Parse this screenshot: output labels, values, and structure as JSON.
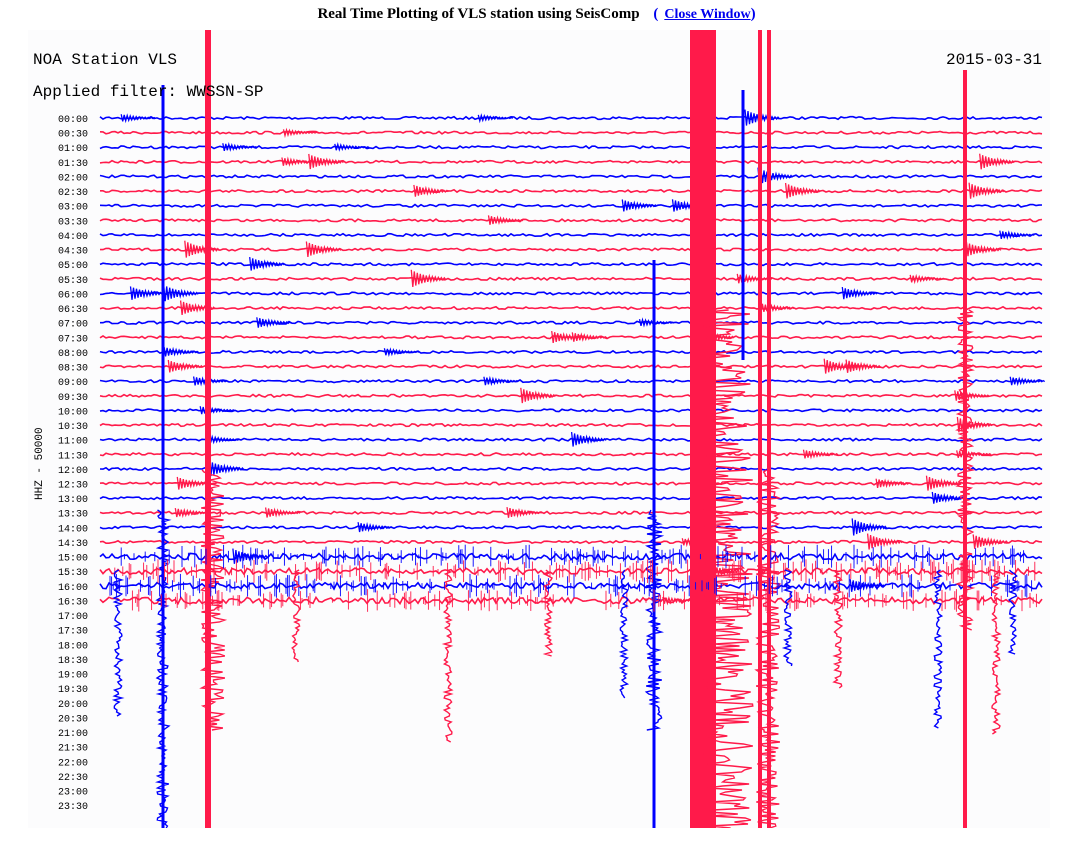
{
  "header": {
    "title": "Real Time Plotting of VLS station using SeisComp",
    "open_paren": "(",
    "close_label": "Close Window",
    "close_paren": ")"
  },
  "plot": {
    "station_label": "NOA Station VLS",
    "date": "2015-03-31",
    "filter_label": "Applied filter: WWSSN-SP",
    "channel_label": "HHZ - 50000"
  },
  "colors": {
    "blue": "#0000ff",
    "red": "#ff1a4a"
  },
  "chart_data": {
    "type": "line",
    "description_free": true,
    "row_labels": [
      "00:00",
      "00:30",
      "01:00",
      "01:30",
      "02:00",
      "02:30",
      "03:00",
      "03:30",
      "04:00",
      "04:30",
      "05:00",
      "05:30",
      "06:00",
      "06:30",
      "07:00",
      "07:30",
      "08:00",
      "08:30",
      "09:00",
      "09:30",
      "10:00",
      "10:30",
      "11:00",
      "11:30",
      "12:00",
      "12:30",
      "13:00",
      "13:30",
      "14:00",
      "14:30",
      "15:00",
      "15:30",
      "16:00",
      "16:30",
      "17:00",
      "17:30",
      "18:00",
      "18:30",
      "19:00",
      "19:30",
      "20:00",
      "20:30",
      "21:00",
      "21:30",
      "22:00",
      "22:30",
      "23:00",
      "23:30"
    ],
    "recorded_rows": 34,
    "row_minutes": 30
  }
}
